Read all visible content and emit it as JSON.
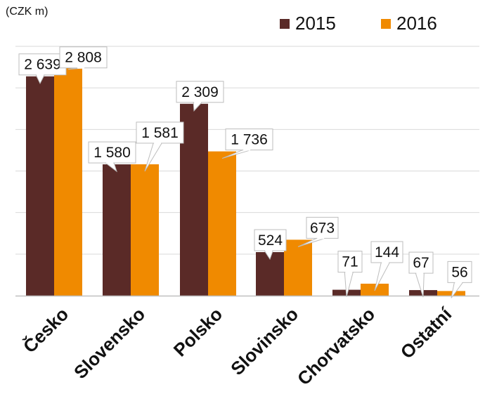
{
  "chart_data": {
    "type": "bar",
    "unit_label": "(CZK m)",
    "categories": [
      "Česko",
      "Slovensko",
      "Polsko",
      "Slovinsko",
      "Chorvatsko",
      "Ostatní"
    ],
    "series": [
      {
        "name": "2015",
        "color": "#5a2a27",
        "values": [
          2639,
          1580,
          2309,
          524,
          71,
          67
        ],
        "labels": [
          "2 639",
          "1 580",
          "2 309",
          "524",
          "71",
          "67"
        ]
      },
      {
        "name": "2016",
        "color": "#f08a00",
        "values": [
          2808,
          1581,
          1736,
          673,
          144,
          56
        ],
        "labels": [
          "2 808",
          "1 581",
          "1 736",
          "673",
          "144",
          "56"
        ]
      }
    ],
    "ylim": [
      0,
      3000
    ],
    "grid": true,
    "legend_position": "top-right"
  }
}
